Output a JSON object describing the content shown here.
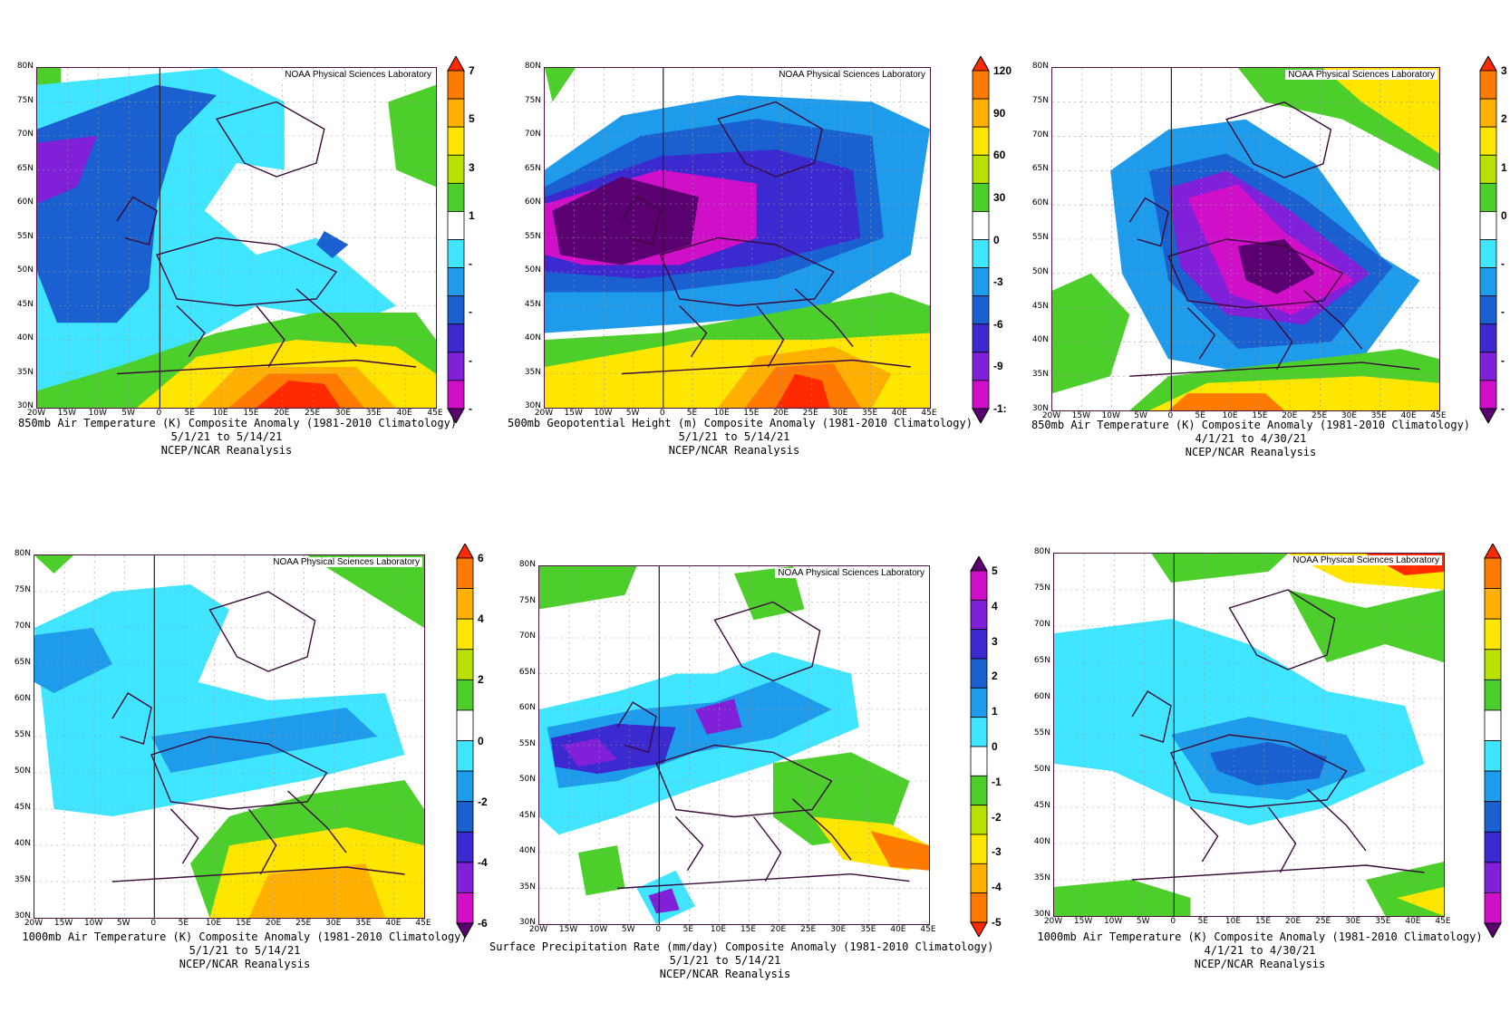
{
  "credit": "NOAA Physical Sciences Laboratory",
  "source": "NCEP/NCAR Reanalysis",
  "lat_labels": [
    "80N",
    "75N",
    "70N",
    "65N",
    "60N",
    "55N",
    "50N",
    "45N",
    "40N",
    "35N",
    "30N"
  ],
  "lon_labels": [
    "20W",
    "15W",
    "10W",
    "5W",
    "0",
    "5E",
    "10E",
    "15E",
    "20E",
    "25E",
    "30E",
    "35E",
    "40E",
    "45E"
  ],
  "panels": [
    {
      "title": "850mb Air Temperature (K) Composite Anomaly (1981-2010 Climatology)",
      "period": "5/1/21  to 5/14/21",
      "source": "NCEP/NCAR Reanalysis",
      "colorbar_labels": [
        "7",
        "5",
        "3",
        "1",
        "-",
        "-",
        "-",
        "-"
      ],
      "colors": [
        "#ff2a00",
        "#ff7a00",
        "#ffb000",
        "#ffe600",
        "#b8e000",
        "#4ccf2a",
        "#ffffff",
        "#40e6ff",
        "#1e9bea",
        "#1a60d0",
        "#3a2ad0",
        "#8020d8",
        "#d010c8",
        "#5a0070"
      ]
    },
    {
      "title": "500mb Geopotential Height (m) Composite Anomaly (1981-2010 Climatology)",
      "period": "5/1/21  to 5/14/21",
      "source": "NCEP/NCAR Reanalysis",
      "colorbar_labels": [
        "120",
        "90",
        "60",
        "30",
        "0",
        "-3",
        "-6",
        "-9",
        "-1:"
      ],
      "colors": [
        "#ff2a00",
        "#ff7a00",
        "#ffb000",
        "#ffe600",
        "#b8e000",
        "#4ccf2a",
        "#ffffff",
        "#40e6ff",
        "#1e9bea",
        "#1a60d0",
        "#3a2ad0",
        "#8020d8",
        "#d010c8",
        "#5a0070"
      ]
    },
    {
      "title": "850mb Air Temperature (K) Composite Anomaly (1981-2010 Climatology)",
      "period": "4/1/21  to 4/30/21",
      "source": "NCEP/NCAR Reanalysis",
      "colorbar_labels": [
        "3",
        "2",
        "1",
        "0",
        "-",
        "-",
        "-",
        "-"
      ],
      "colors": [
        "#ff2a00",
        "#ff7a00",
        "#ffb000",
        "#ffe600",
        "#b8e000",
        "#4ccf2a",
        "#ffffff",
        "#40e6ff",
        "#1e9bea",
        "#1a60d0",
        "#3a2ad0",
        "#8020d8",
        "#d010c8",
        "#5a0070"
      ]
    },
    {
      "title": "1000mb Air Temperature (K) Composite Anomaly (1981-2010 Climatology)",
      "period": "5/1/21  to 5/14/21",
      "source": "NCEP/NCAR Reanalysis",
      "colorbar_labels": [
        "6",
        "4",
        "2",
        "0",
        "-2",
        "-4",
        "-6"
      ],
      "colors": [
        "#ff2a00",
        "#ff7a00",
        "#ffb000",
        "#ffe600",
        "#b8e000",
        "#4ccf2a",
        "#ffffff",
        "#40e6ff",
        "#1e9bea",
        "#1a60d0",
        "#3a2ad0",
        "#8020d8",
        "#d010c8",
        "#5a0070"
      ]
    },
    {
      "title": "Surface Precipitation Rate (mm/day) Composite Anomaly (1981-2010 Climatology)",
      "period": "5/1/21  to 5/14/21",
      "source": "NCEP/NCAR Reanalysis",
      "colorbar_labels": [
        "5",
        "4",
        "3",
        "2",
        "1",
        "0",
        "-1",
        "-2",
        "-3",
        "-4",
        "-5"
      ],
      "colors": [
        "#5a0070",
        "#d010c8",
        "#8020d8",
        "#3a2ad0",
        "#1a60d0",
        "#1e9bea",
        "#40e6ff",
        "#ffffff",
        "#4ccf2a",
        "#b8e000",
        "#ffe600",
        "#ffb000",
        "#ff7a00",
        "#ff2a00"
      ]
    },
    {
      "title": "1000mb Air Temperature (K) Composite Anomaly (1981-2010 Climatology)",
      "period": "4/1/21  to 4/30/21",
      "source": "NCEP/NCAR Reanalysis",
      "colorbar_labels": [],
      "colors": [
        "#ff2a00",
        "#ff7a00",
        "#ffb000",
        "#ffe600",
        "#b8e000",
        "#4ccf2a",
        "#ffffff",
        "#40e6ff",
        "#1e9bea",
        "#1a60d0",
        "#3a2ad0",
        "#8020d8",
        "#d010c8",
        "#5a0070"
      ]
    }
  ]
}
